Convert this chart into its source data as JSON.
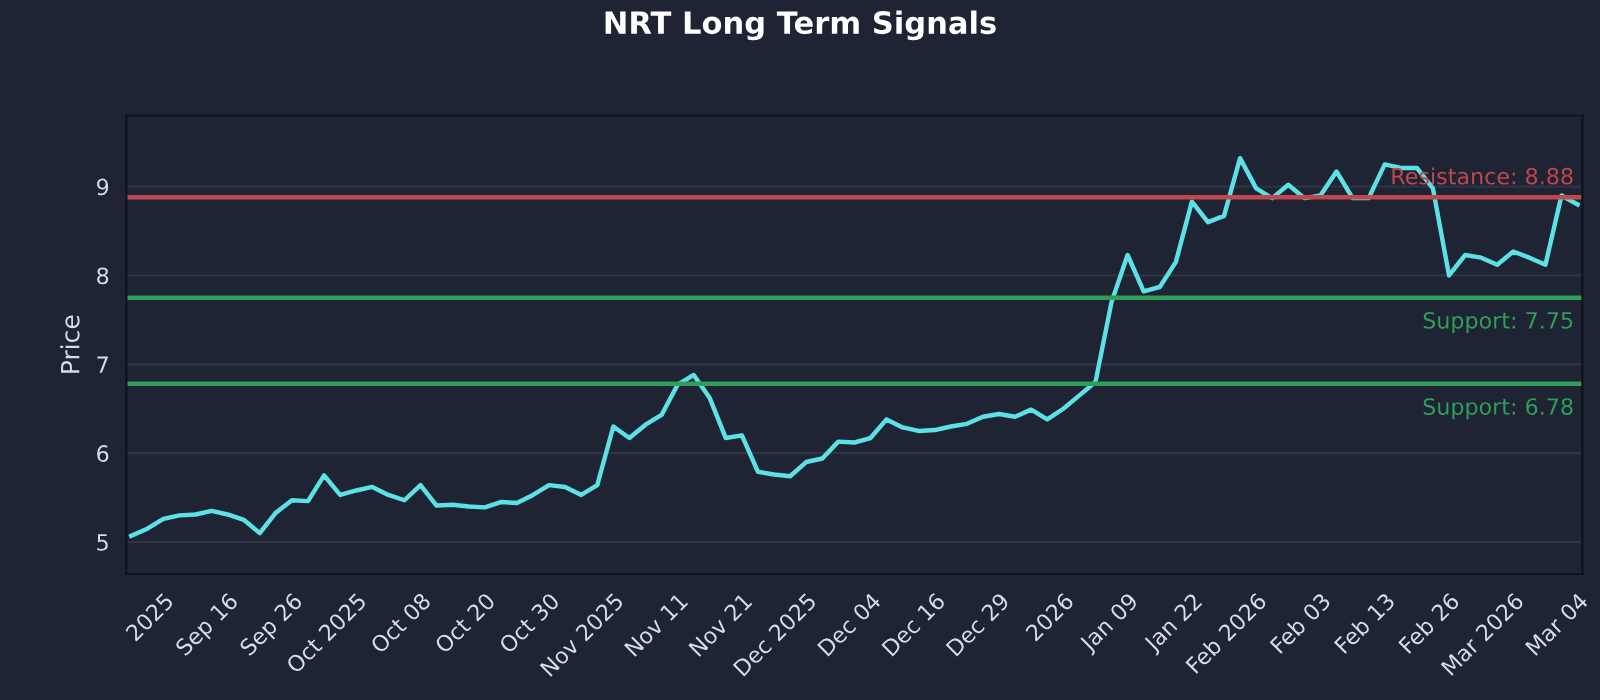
{
  "chart_data": {
    "type": "line",
    "title": "NRT Long Term Signals",
    "ylabel": "Price",
    "categories": [
      null,
      null,
      "2025",
      null,
      null,
      null,
      "Sep 16",
      null,
      null,
      null,
      "Sep 26",
      null,
      null,
      null,
      "Oct 2025",
      null,
      null,
      null,
      "Oct 08",
      null,
      null,
      null,
      "Oct 20",
      null,
      null,
      null,
      "Oct 30",
      null,
      null,
      null,
      "Nov 2025",
      null,
      null,
      null,
      "Nov 11",
      null,
      null,
      null,
      "Nov 21",
      null,
      null,
      null,
      "Dec 2025",
      null,
      null,
      null,
      "Dec 04",
      null,
      null,
      null,
      "Dec 16",
      null,
      null,
      null,
      "Dec 29",
      null,
      null,
      null,
      "2026",
      null,
      null,
      null,
      "Jan 09",
      null,
      null,
      null,
      "Jan 22",
      null,
      null,
      null,
      "Feb 2026",
      null,
      null,
      null,
      "Feb 03",
      null,
      null,
      null,
      "Feb 13",
      null,
      null,
      null,
      "Feb 26",
      null,
      null,
      null,
      "Mar 2026",
      null,
      null,
      null,
      "Mar 04"
    ],
    "series": [
      {
        "color": "#5ce1e6",
        "values": [
          5.07,
          5.15,
          5.26,
          5.3,
          5.31,
          5.35,
          5.31,
          5.25,
          5.1,
          5.33,
          5.47,
          5.46,
          5.75,
          5.53,
          5.58,
          5.62,
          5.53,
          5.47,
          5.64,
          5.41,
          5.42,
          5.4,
          5.39,
          5.45,
          5.44,
          5.53,
          5.64,
          5.62,
          5.53,
          5.64,
          6.3,
          6.17,
          6.32,
          6.43,
          6.77,
          6.88,
          6.62,
          6.17,
          6.2,
          5.79,
          5.76,
          5.74,
          5.9,
          5.94,
          6.13,
          6.12,
          6.17,
          6.38,
          6.29,
          6.25,
          6.26,
          6.3,
          6.33,
          6.41,
          6.44,
          6.41,
          6.49,
          6.38,
          6.5,
          6.65,
          6.8,
          7.7,
          8.23,
          7.82,
          7.87,
          8.15,
          8.83,
          8.6,
          8.67,
          9.32,
          8.98,
          8.87,
          9.02,
          8.87,
          8.9,
          9.17,
          8.87,
          8.87,
          9.25,
          9.21,
          9.21,
          8.98,
          8.0,
          8.23,
          8.2,
          8.12,
          8.27,
          8.2,
          8.12,
          8.9,
          8.8
        ]
      }
    ],
    "ylim": [
      4.64,
      9.8
    ],
    "yticks": [
      5,
      6,
      7,
      8,
      9
    ],
    "grid": "y",
    "ref_lines": [
      {
        "axis": "y",
        "value": 8.88,
        "label": "Resistance: 8.88",
        "color": "#c0474d"
      },
      {
        "axis": "y",
        "value": 7.75,
        "label": "Support: 7.75",
        "color": "#2e9e5a"
      },
      {
        "axis": "y",
        "value": 6.78,
        "label": "Support: 6.78",
        "color": "#2e9e5a"
      }
    ]
  }
}
